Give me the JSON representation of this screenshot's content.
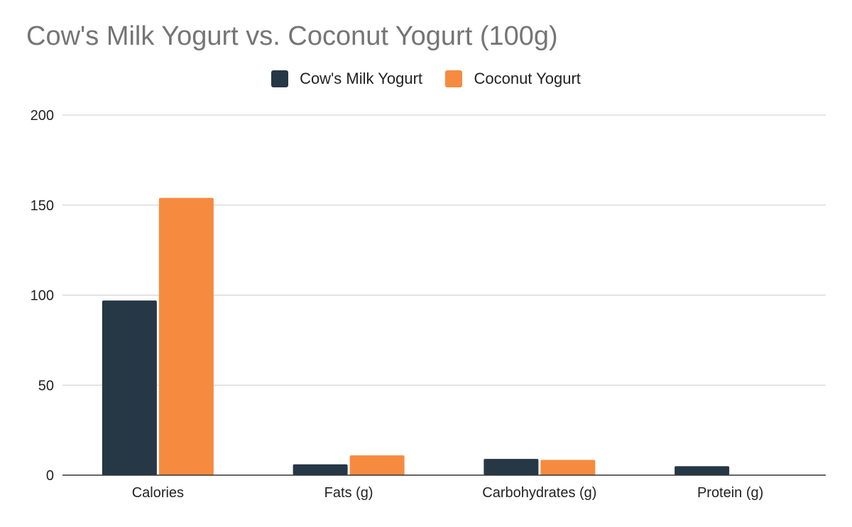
{
  "chart_data": {
    "type": "bar",
    "title": "Cow's Milk Yogurt vs. Coconut Yogurt (100g)",
    "categories": [
      "Calories",
      "Fats (g)",
      "Carbohydrates (g)",
      "Protein (g)"
    ],
    "series": [
      {
        "name": "Cow's Milk Yogurt",
        "color": "#263746",
        "values": [
          97,
          6,
          9,
          5
        ]
      },
      {
        "name": "Coconut Yogurt",
        "color": "#f68b3f",
        "values": [
          154,
          11,
          8.5,
          0
        ]
      }
    ],
    "ylim": [
      0,
      200
    ],
    "yticks": [
      0,
      50,
      100,
      150,
      200
    ],
    "grid": true,
    "legend_position": "top"
  }
}
